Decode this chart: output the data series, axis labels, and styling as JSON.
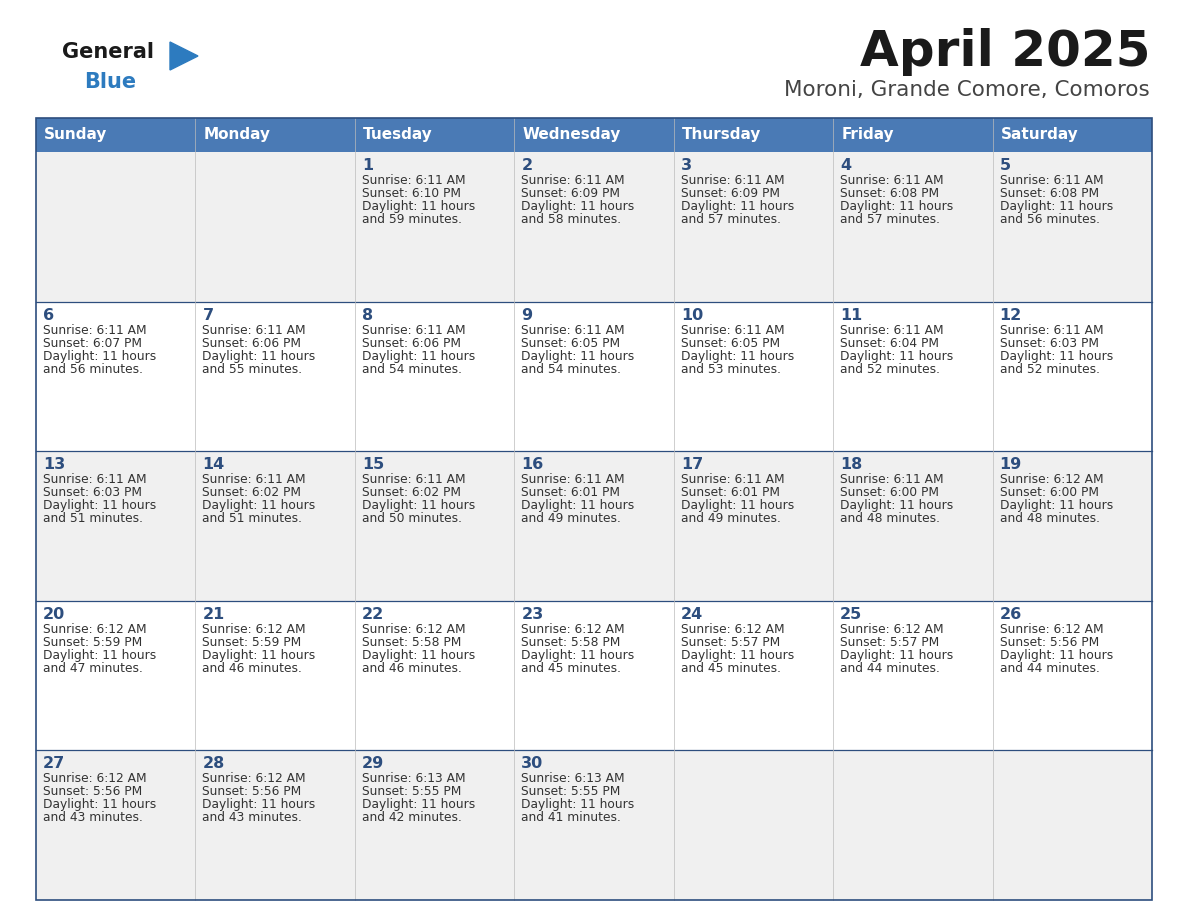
{
  "title": "April 2025",
  "subtitle": "Moroni, Grande Comore, Comoros",
  "header_bg": "#4a7ab5",
  "header_text": "#ffffff",
  "weekdays": [
    "Sunday",
    "Monday",
    "Tuesday",
    "Wednesday",
    "Thursday",
    "Friday",
    "Saturday"
  ],
  "row_bg_odd": "#f0f0f0",
  "row_bg_even": "#ffffff",
  "day_text_color": "#2d4e7e",
  "cell_text_color": "#333333",
  "border_color": "#2d4e7e",
  "title_color": "#1a1a1a",
  "subtitle_color": "#444444",
  "logo_general_color": "#1a1a1a",
  "logo_blue_color": "#2d7bbf",
  "days": [
    {
      "date": 1,
      "col": 2,
      "row": 0,
      "sunrise": "6:11 AM",
      "sunset": "6:10 PM",
      "daylight_h": "11 hours",
      "daylight_m": "59 minutes."
    },
    {
      "date": 2,
      "col": 3,
      "row": 0,
      "sunrise": "6:11 AM",
      "sunset": "6:09 PM",
      "daylight_h": "11 hours",
      "daylight_m": "58 minutes."
    },
    {
      "date": 3,
      "col": 4,
      "row": 0,
      "sunrise": "6:11 AM",
      "sunset": "6:09 PM",
      "daylight_h": "11 hours",
      "daylight_m": "57 minutes."
    },
    {
      "date": 4,
      "col": 5,
      "row": 0,
      "sunrise": "6:11 AM",
      "sunset": "6:08 PM",
      "daylight_h": "11 hours",
      "daylight_m": "57 minutes."
    },
    {
      "date": 5,
      "col": 6,
      "row": 0,
      "sunrise": "6:11 AM",
      "sunset": "6:08 PM",
      "daylight_h": "11 hours",
      "daylight_m": "56 minutes."
    },
    {
      "date": 6,
      "col": 0,
      "row": 1,
      "sunrise": "6:11 AM",
      "sunset": "6:07 PM",
      "daylight_h": "11 hours",
      "daylight_m": "56 minutes."
    },
    {
      "date": 7,
      "col": 1,
      "row": 1,
      "sunrise": "6:11 AM",
      "sunset": "6:06 PM",
      "daylight_h": "11 hours",
      "daylight_m": "55 minutes."
    },
    {
      "date": 8,
      "col": 2,
      "row": 1,
      "sunrise": "6:11 AM",
      "sunset": "6:06 PM",
      "daylight_h": "11 hours",
      "daylight_m": "54 minutes."
    },
    {
      "date": 9,
      "col": 3,
      "row": 1,
      "sunrise": "6:11 AM",
      "sunset": "6:05 PM",
      "daylight_h": "11 hours",
      "daylight_m": "54 minutes."
    },
    {
      "date": 10,
      "col": 4,
      "row": 1,
      "sunrise": "6:11 AM",
      "sunset": "6:05 PM",
      "daylight_h": "11 hours",
      "daylight_m": "53 minutes."
    },
    {
      "date": 11,
      "col": 5,
      "row": 1,
      "sunrise": "6:11 AM",
      "sunset": "6:04 PM",
      "daylight_h": "11 hours",
      "daylight_m": "52 minutes."
    },
    {
      "date": 12,
      "col": 6,
      "row": 1,
      "sunrise": "6:11 AM",
      "sunset": "6:03 PM",
      "daylight_h": "11 hours",
      "daylight_m": "52 minutes."
    },
    {
      "date": 13,
      "col": 0,
      "row": 2,
      "sunrise": "6:11 AM",
      "sunset": "6:03 PM",
      "daylight_h": "11 hours",
      "daylight_m": "51 minutes."
    },
    {
      "date": 14,
      "col": 1,
      "row": 2,
      "sunrise": "6:11 AM",
      "sunset": "6:02 PM",
      "daylight_h": "11 hours",
      "daylight_m": "51 minutes."
    },
    {
      "date": 15,
      "col": 2,
      "row": 2,
      "sunrise": "6:11 AM",
      "sunset": "6:02 PM",
      "daylight_h": "11 hours",
      "daylight_m": "50 minutes."
    },
    {
      "date": 16,
      "col": 3,
      "row": 2,
      "sunrise": "6:11 AM",
      "sunset": "6:01 PM",
      "daylight_h": "11 hours",
      "daylight_m": "49 minutes."
    },
    {
      "date": 17,
      "col": 4,
      "row": 2,
      "sunrise": "6:11 AM",
      "sunset": "6:01 PM",
      "daylight_h": "11 hours",
      "daylight_m": "49 minutes."
    },
    {
      "date": 18,
      "col": 5,
      "row": 2,
      "sunrise": "6:11 AM",
      "sunset": "6:00 PM",
      "daylight_h": "11 hours",
      "daylight_m": "48 minutes."
    },
    {
      "date": 19,
      "col": 6,
      "row": 2,
      "sunrise": "6:12 AM",
      "sunset": "6:00 PM",
      "daylight_h": "11 hours",
      "daylight_m": "48 minutes."
    },
    {
      "date": 20,
      "col": 0,
      "row": 3,
      "sunrise": "6:12 AM",
      "sunset": "5:59 PM",
      "daylight_h": "11 hours",
      "daylight_m": "47 minutes."
    },
    {
      "date": 21,
      "col": 1,
      "row": 3,
      "sunrise": "6:12 AM",
      "sunset": "5:59 PM",
      "daylight_h": "11 hours",
      "daylight_m": "46 minutes."
    },
    {
      "date": 22,
      "col": 2,
      "row": 3,
      "sunrise": "6:12 AM",
      "sunset": "5:58 PM",
      "daylight_h": "11 hours",
      "daylight_m": "46 minutes."
    },
    {
      "date": 23,
      "col": 3,
      "row": 3,
      "sunrise": "6:12 AM",
      "sunset": "5:58 PM",
      "daylight_h": "11 hours",
      "daylight_m": "45 minutes."
    },
    {
      "date": 24,
      "col": 4,
      "row": 3,
      "sunrise": "6:12 AM",
      "sunset": "5:57 PM",
      "daylight_h": "11 hours",
      "daylight_m": "45 minutes."
    },
    {
      "date": 25,
      "col": 5,
      "row": 3,
      "sunrise": "6:12 AM",
      "sunset": "5:57 PM",
      "daylight_h": "11 hours",
      "daylight_m": "44 minutes."
    },
    {
      "date": 26,
      "col": 6,
      "row": 3,
      "sunrise": "6:12 AM",
      "sunset": "5:56 PM",
      "daylight_h": "11 hours",
      "daylight_m": "44 minutes."
    },
    {
      "date": 27,
      "col": 0,
      "row": 4,
      "sunrise": "6:12 AM",
      "sunset": "5:56 PM",
      "daylight_h": "11 hours",
      "daylight_m": "43 minutes."
    },
    {
      "date": 28,
      "col": 1,
      "row": 4,
      "sunrise": "6:12 AM",
      "sunset": "5:56 PM",
      "daylight_h": "11 hours",
      "daylight_m": "43 minutes."
    },
    {
      "date": 29,
      "col": 2,
      "row": 4,
      "sunrise": "6:13 AM",
      "sunset": "5:55 PM",
      "daylight_h": "11 hours",
      "daylight_m": "42 minutes."
    },
    {
      "date": 30,
      "col": 3,
      "row": 4,
      "sunrise": "6:13 AM",
      "sunset": "5:55 PM",
      "daylight_h": "11 hours",
      "daylight_m": "41 minutes."
    }
  ]
}
